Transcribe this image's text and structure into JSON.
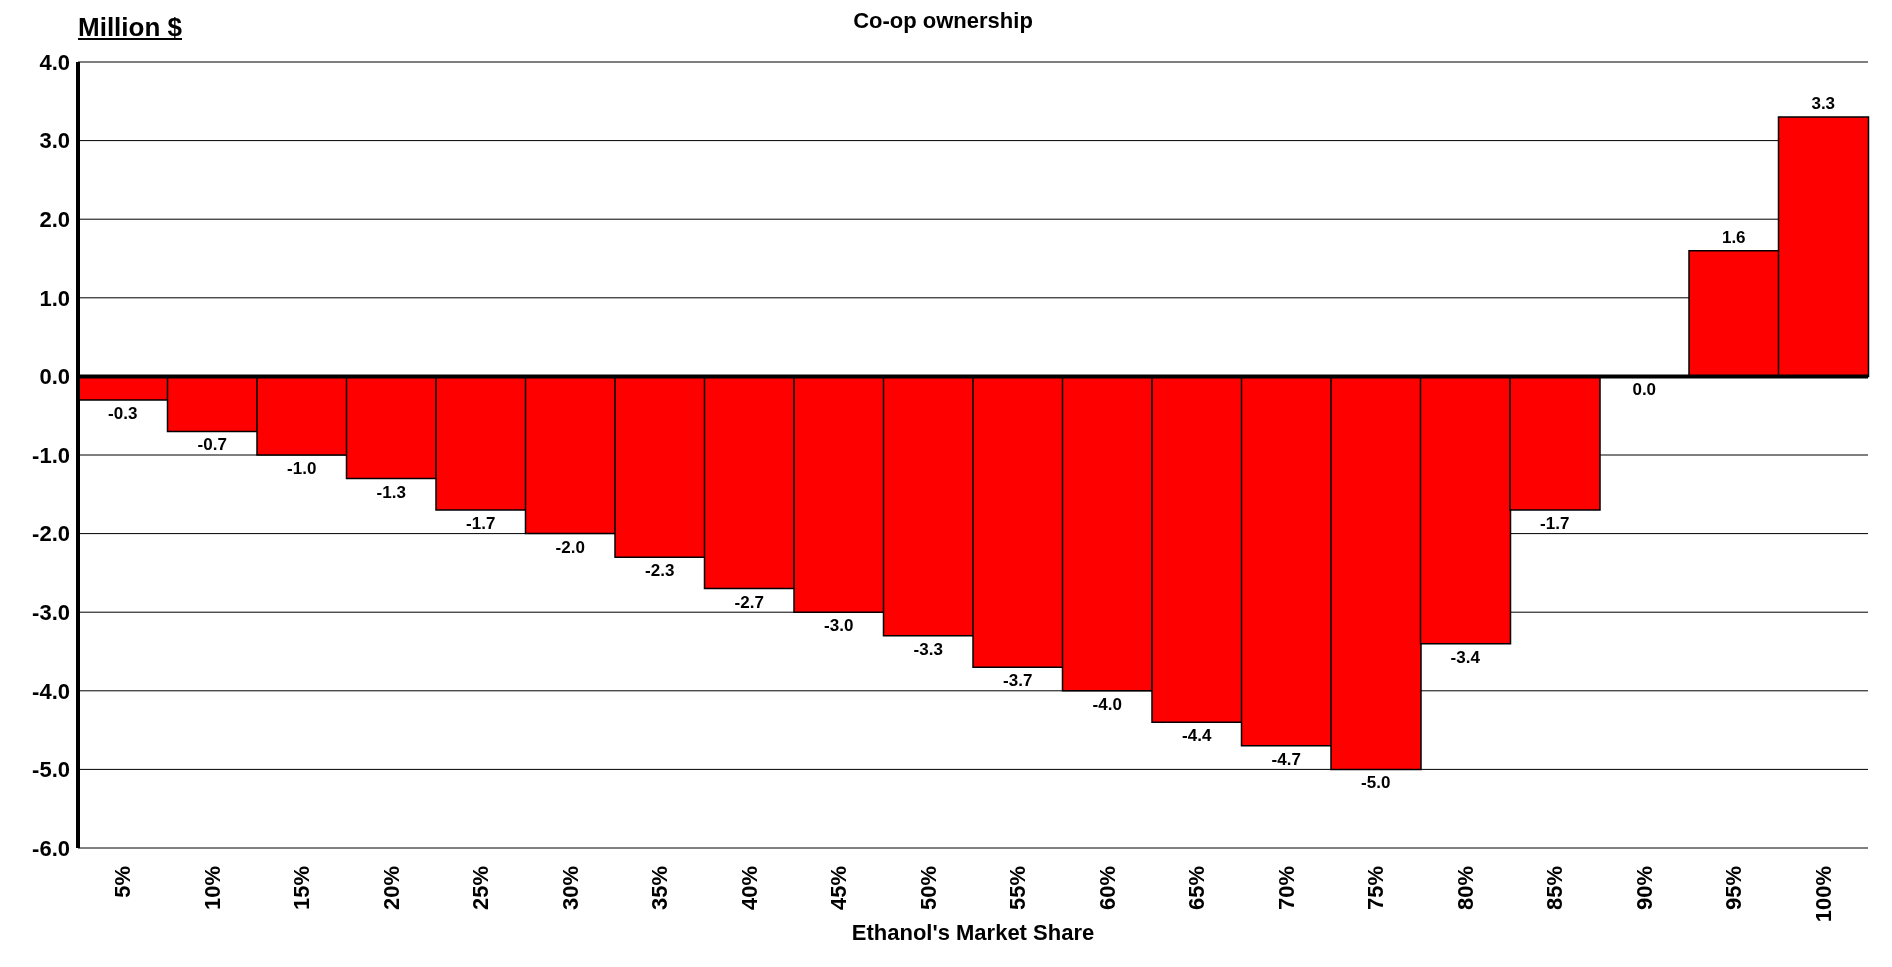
{
  "chart_data": {
    "type": "bar",
    "title": "Co-op ownership",
    "ylabel": "Million $",
    "xlabel": "Ethanol's Market Share",
    "categories": [
      "5%",
      "10%",
      "15%",
      "20%",
      "25%",
      "30%",
      "35%",
      "40%",
      "45%",
      "50%",
      "55%",
      "60%",
      "65%",
      "70%",
      "75%",
      "80%",
      "85%",
      "90%",
      "95%",
      "100%"
    ],
    "values": [
      -0.3,
      -0.7,
      -1.0,
      -1.3,
      -1.7,
      -2.0,
      -2.3,
      -2.7,
      -3.0,
      -3.3,
      -3.7,
      -4.0,
      -4.4,
      -4.7,
      -5.0,
      -3.4,
      -1.7,
      0.0,
      1.6,
      3.3
    ],
    "value_labels": [
      "-0.3",
      "-0.7",
      "-1.0",
      "-1.3",
      "-1.7",
      "-2.0",
      "-2.3",
      "-2.7",
      "-3.0",
      "-3.3",
      "-3.7",
      "-4.0",
      "-4.4",
      "-4.7",
      "-5.0",
      "-3.4",
      "-1.7",
      "0.0",
      "1.6",
      "3.3"
    ],
    "color": "#ff0000",
    "ylim": [
      -6,
      4
    ],
    "yticks": [
      {
        "value": -6,
        "label": "-6.0"
      },
      {
        "value": -5,
        "label": "-5.0"
      },
      {
        "value": -4,
        "label": "-4.0"
      },
      {
        "value": -3,
        "label": "-3.0"
      },
      {
        "value": -2,
        "label": "-2.0"
      },
      {
        "value": -1,
        "label": "-1.0"
      },
      {
        "value": 0,
        "label": "0.0"
      },
      {
        "value": 1,
        "label": "1.0"
      },
      {
        "value": 2,
        "label": "2.0"
      },
      {
        "value": 3,
        "label": "3.0"
      },
      {
        "value": 4,
        "label": "4.0"
      }
    ],
    "grid": "y"
  }
}
